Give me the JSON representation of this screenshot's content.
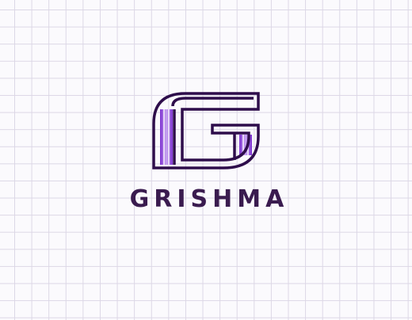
{
  "logo": {
    "brand_name": "GRISHMA",
    "mark_icon": "letter-g-monogram-icon",
    "colors": {
      "outline": "#2e0d4b",
      "stripe_dark": "#7b2fd0",
      "stripe_light": "#c9a6f1",
      "text": "#3a1b4f",
      "grid": "#dcd7e6",
      "background": "#fbfafd"
    }
  }
}
